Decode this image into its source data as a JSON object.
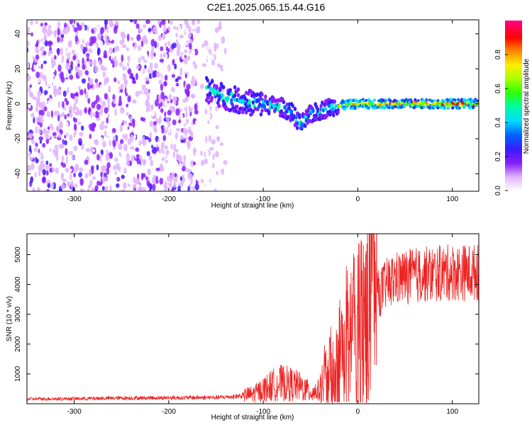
{
  "title": "C2E1.2025.065.15.44.G16",
  "chart_data": [
    {
      "type": "heatmap",
      "xlabel": "Height of straight line (km)",
      "ylabel": "Frequency (Hz)",
      "xlim": [
        -350,
        128
      ],
      "ylim": [
        -50,
        48
      ],
      "xticks": [
        -300,
        -200,
        -100,
        0,
        100
      ],
      "yticks": [
        -40,
        -20,
        0,
        20,
        40
      ],
      "colorbar": {
        "label": "Normalized spectral amplitude",
        "range": [
          0.0,
          1.0
        ],
        "ticks": [
          0.0,
          0.2,
          0.4,
          0.6,
          0.8
        ],
        "colormap": "rainbow (white-violet-blue-cyan-green-yellow-red-magenta)"
      },
      "regions": [
        {
          "x": [
            -350,
            -140
          ],
          "y": [
            -50,
            48
          ],
          "amplitude": "0.0-0.25 (noise)"
        },
        {
          "x": [
            -160,
            -20
          ],
          "y_center": [
            8,
            -15
          ],
          "y_width": 8,
          "amplitude": "0.2-0.5"
        },
        {
          "x": [
            -20,
            128
          ],
          "y_center": [
            0,
            0
          ],
          "y_width": 3,
          "amplitude": "0.5-0.95"
        }
      ],
      "centerline": {
        "x": [
          -160,
          -140,
          -120,
          -100,
          -80,
          -70,
          -60,
          -50,
          -40,
          -30,
          -20,
          0,
          50,
          100,
          128
        ],
        "y": [
          8,
          4,
          1,
          0,
          -2,
          -5,
          -12,
          -6,
          -4,
          -2,
          -1,
          0,
          0,
          0,
          0
        ]
      }
    },
    {
      "type": "line",
      "xlabel": "Height of straight line (km)",
      "ylabel": "SNR (10 * v/v)",
      "xlim": [
        -350,
        128
      ],
      "ylim": [
        0,
        5700
      ],
      "xticks": [
        -300,
        -200,
        -100,
        0,
        100
      ],
      "yticks": [
        1000,
        2000,
        3000,
        4000,
        5000
      ],
      "color": "#ee2222",
      "envelope": {
        "x": [
          -350,
          -300,
          -250,
          -200,
          -150,
          -130,
          -110,
          -100,
          -90,
          -80,
          -70,
          -60,
          -50,
          -40,
          -30,
          -20,
          -10,
          0,
          10,
          20,
          30,
          40,
          60,
          80,
          100,
          128
        ],
        "y": [
          160,
          170,
          190,
          200,
          210,
          240,
          330,
          480,
          620,
          700,
          650,
          560,
          380,
          450,
          1100,
          1700,
          2300,
          2700,
          3100,
          3600,
          4000,
          4200,
          4300,
          4350,
          4400,
          4400
        ]
      }
    }
  ]
}
